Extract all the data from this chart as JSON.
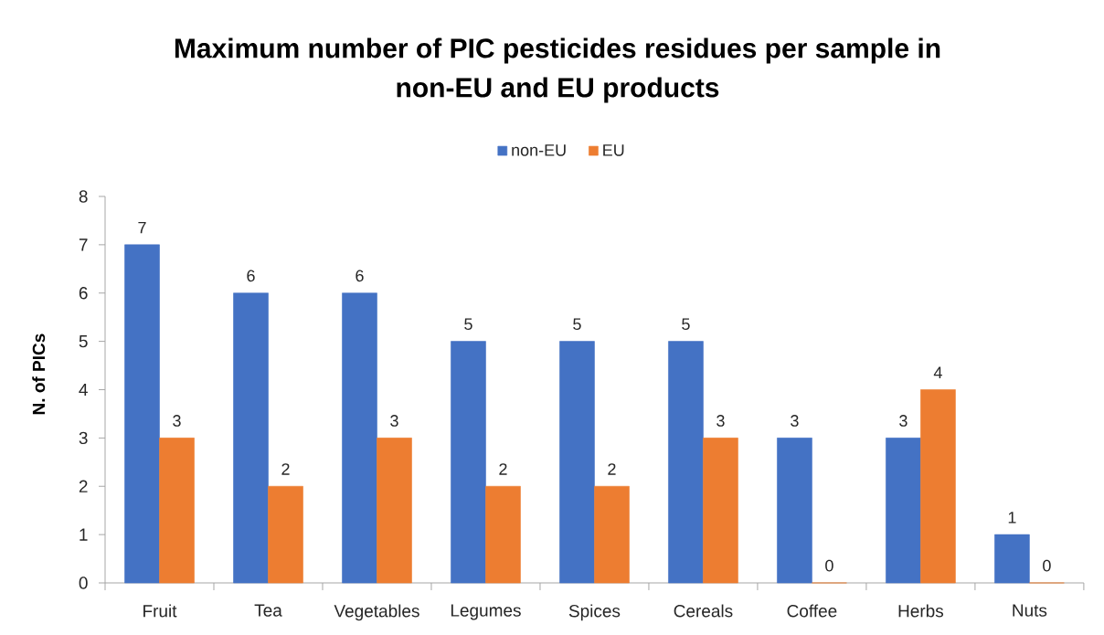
{
  "chart_data": {
    "type": "bar",
    "title": "Maximum number of PIC pesticides residues per sample in non-EU and EU products",
    "categories": [
      "Fruit",
      "Tea",
      "Vegetables",
      "Legumes",
      "Spices",
      "Cereals",
      "Coffee",
      "Herbs",
      "Nuts"
    ],
    "series": [
      {
        "name": "non-EU",
        "color": "#4472c4",
        "values": [
          7,
          6,
          6,
          5,
          5,
          5,
          3,
          3,
          1
        ]
      },
      {
        "name": "EU",
        "color": "#ed7d31",
        "values": [
          3,
          2,
          3,
          2,
          2,
          3,
          0,
          4,
          0
        ]
      }
    ],
    "ylabel": "N. of PICs",
    "ylim": [
      0,
      8
    ],
    "yticks": [
      0,
      1,
      2,
      3,
      4,
      5,
      6,
      7,
      8
    ],
    "data_labels": true,
    "legend": "top"
  }
}
